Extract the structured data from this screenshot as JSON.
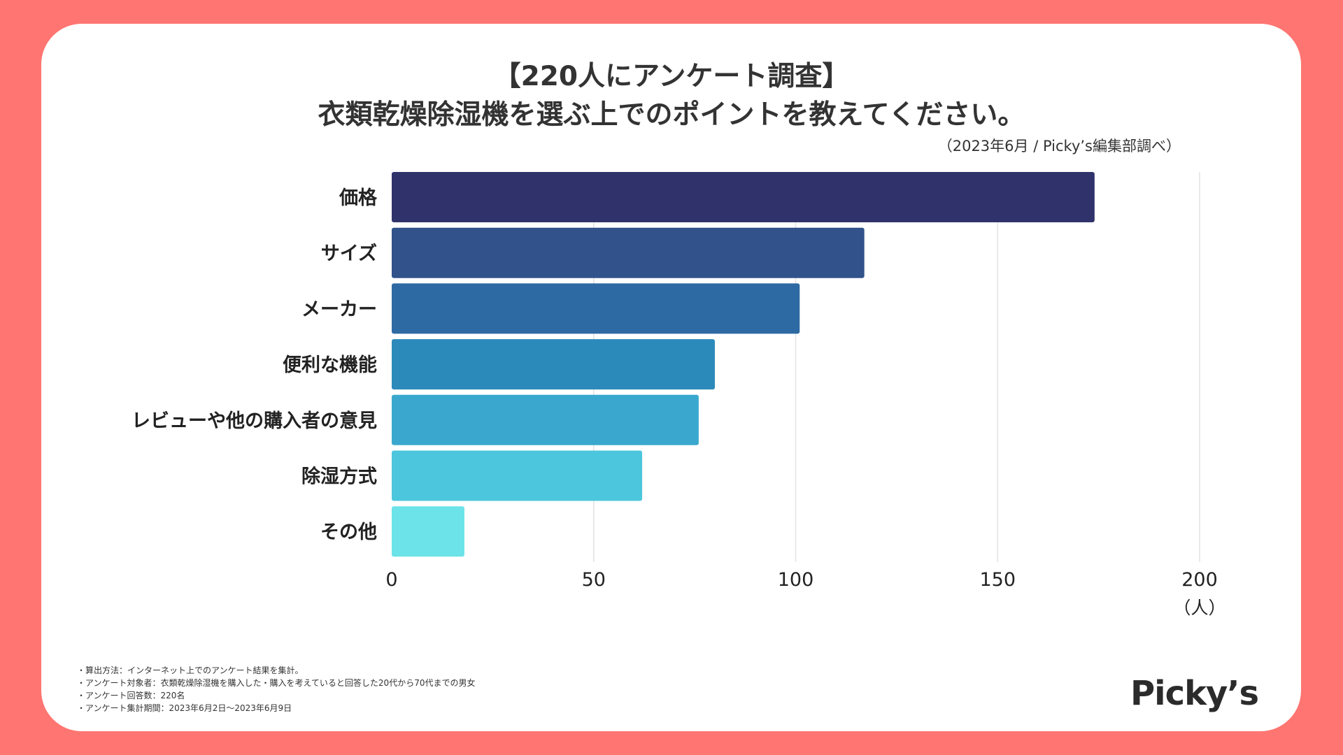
{
  "header": {
    "title_line1": "【220人にアンケート調査】",
    "title_line2": "衣類乾燥除湿機を選ぶ上でのポイントを教えてください。",
    "source": "（2023年6月 / Picky’s編集部調べ）"
  },
  "chart_data": {
    "type": "bar",
    "orientation": "horizontal",
    "categories": [
      "価格",
      "サイズ",
      "メーカー",
      "便利な機能",
      "レビューや他の購入者の意見",
      "除湿方式",
      "その他"
    ],
    "values": [
      174,
      117,
      101,
      80,
      76,
      62,
      18
    ],
    "colors": [
      "#30336B",
      "#31528B",
      "#2D6AA3",
      "#2B8ABA",
      "#3AA8CE",
      "#4CC6DD",
      "#6BE3E8"
    ],
    "xlim": [
      0,
      200
    ],
    "xticks": [
      0,
      50,
      100,
      150,
      200
    ],
    "xlabel": "（人）",
    "grid": true,
    "grid_color": "#e2e2e2"
  },
  "notes": [
    "・算出方法：インターネット上でのアンケート結果を集計。",
    "・アンケート対象者：衣類乾燥除湿機を購入した・購入を考えていると回答した20代から70代までの男女",
    "・アンケート回答数：220名",
    "・アンケート集計期間：2023年6月2日〜2023年6月9日"
  ],
  "brand": {
    "logo_text": "Picky’s"
  },
  "theme": {
    "background": "#FF7571",
    "card": "#ffffff"
  }
}
